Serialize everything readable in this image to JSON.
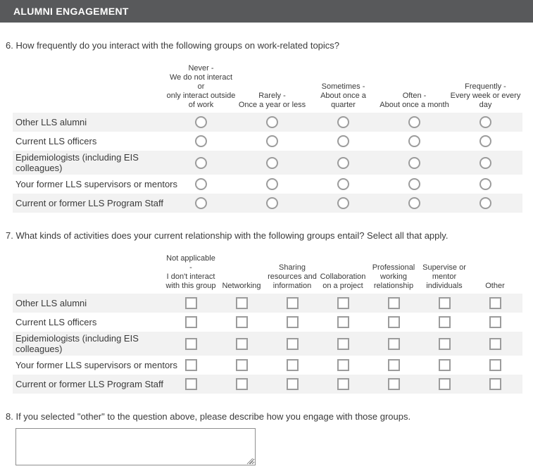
{
  "header": {
    "title": "ALUMNI ENGAGEMENT"
  },
  "q6": {
    "question": "6. How frequently do you interact with the following groups on work-related topics?",
    "columns": [
      "Never -\nWe do not interact or\nonly interact outside\nof work",
      "Rarely -\nOnce a year or less",
      "Sometimes -\nAbout once a quarter",
      "Often -\nAbout once a month",
      "Frequently -\nEvery week or every\nday"
    ],
    "rows": [
      "Other LLS alumni",
      "Current LLS officers",
      "Epidemiologists (including EIS\ncolleagues)",
      "Your former LLS supervisors or mentors",
      "Current or former LLS Program Staff"
    ]
  },
  "q7": {
    "question": "7. What kinds of activities does your current relationship with the following groups entail? Select all that apply.",
    "columns": [
      "Not applicable -\nI don't interact\nwith this group",
      "Networking",
      "Sharing\nresources and\ninformation",
      "Collaboration\non a project",
      "Professional\nworking\nrelationship",
      "Supervise or\nmentor\nindividuals",
      "Other"
    ],
    "rows": [
      "Other LLS alumni",
      "Current LLS officers",
      "Epidemiologists (including EIS\ncolleagues)",
      "Your former LLS supervisors or mentors",
      "Current or former LLS Program Staff"
    ]
  },
  "q8": {
    "question": "8. If you selected \"other\" to the question above, please describe how you engage with those groups.",
    "value": ""
  },
  "colors": {
    "header_bar": "#58595B",
    "row_stripe": "#F2F2F2",
    "control_border": "#9C9C9C",
    "text": "#3A3A3A"
  }
}
